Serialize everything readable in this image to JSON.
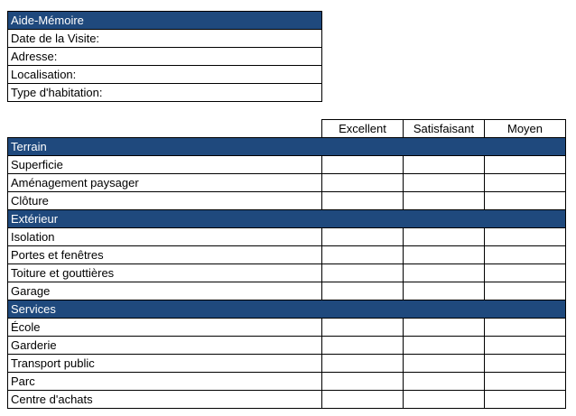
{
  "memo": {
    "title": "Aide-Mémoire",
    "fields": [
      "Date de la Visite:",
      "Adresse:",
      "Localisation:",
      "Type d'habitation:"
    ]
  },
  "evaluation": {
    "columns": [
      "Excellent",
      "Satisfaisant",
      "Moyen"
    ],
    "sections": [
      {
        "title": "Terrain",
        "items": [
          "Superficie",
          "Aménagement paysager",
          "Clôture"
        ]
      },
      {
        "title": "Extérieur",
        "items": [
          "Isolation",
          "Portes et fenêtres",
          "Toiture et gouttières",
          "Garage"
        ]
      },
      {
        "title": "Services",
        "items": [
          "École",
          "Garderie",
          "Transport public",
          "Parc",
          "Centre d'achats"
        ]
      }
    ]
  },
  "colors": {
    "header_bg": "#1f497d",
    "header_text": "#ffffff"
  }
}
